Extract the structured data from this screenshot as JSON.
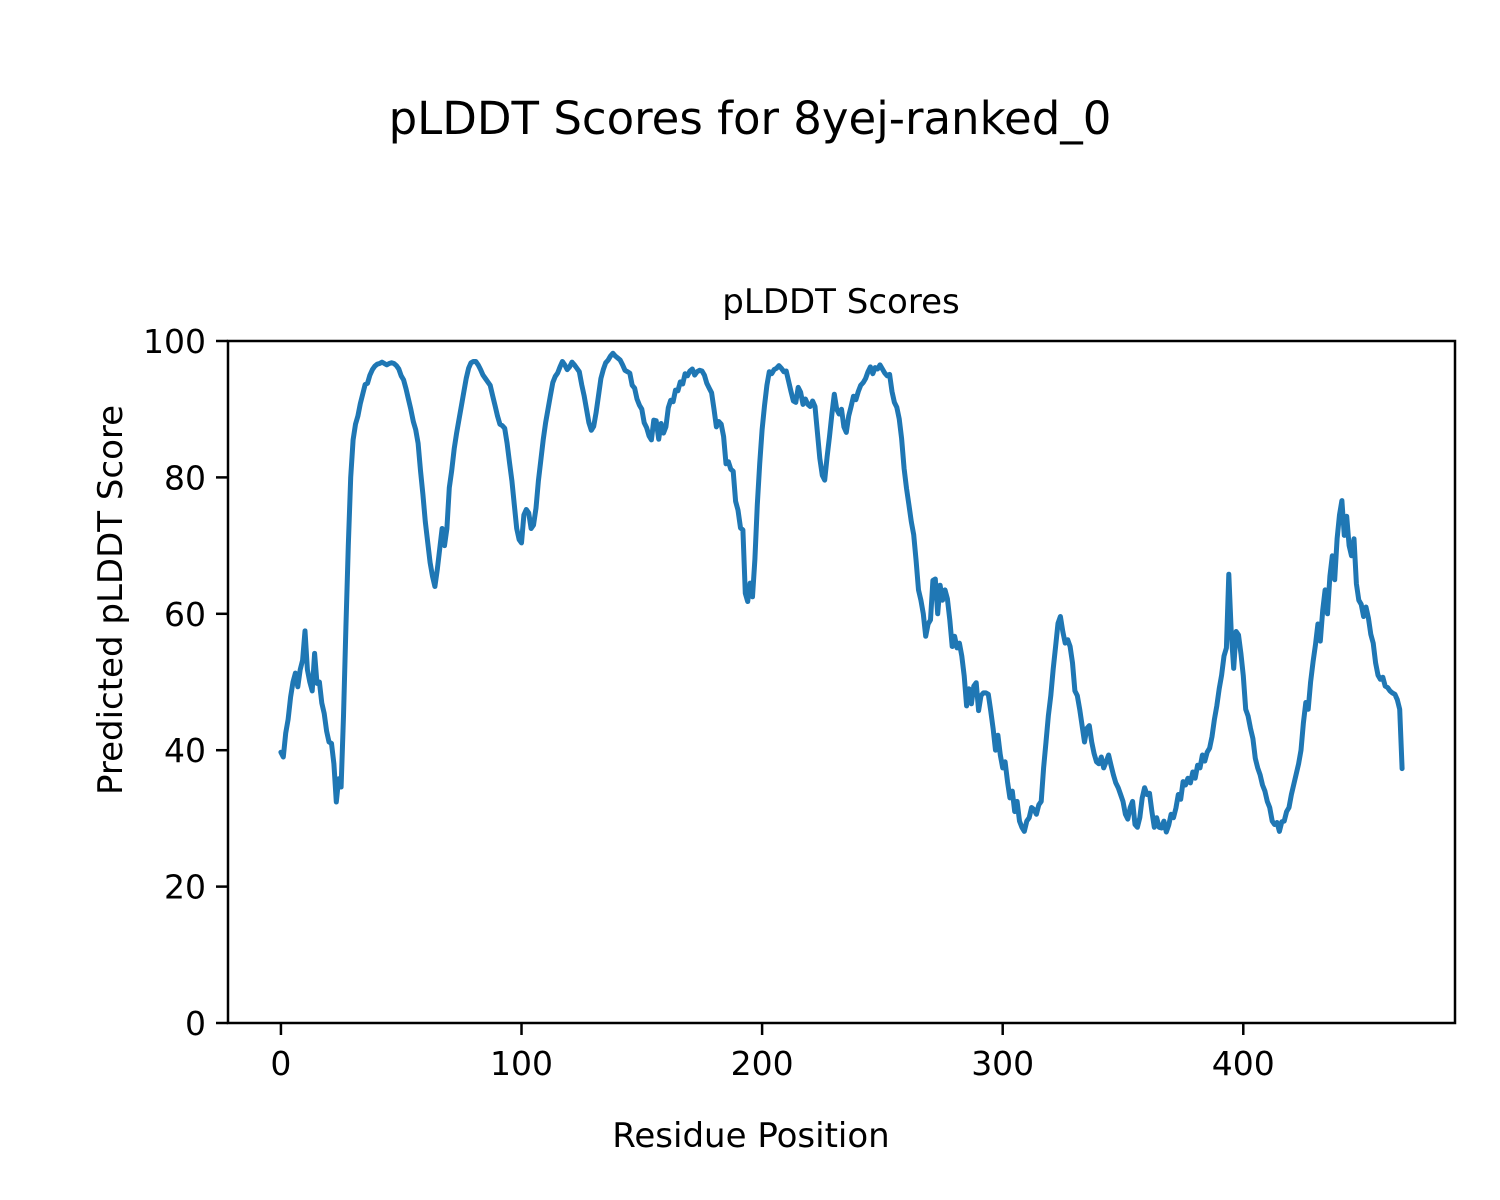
{
  "figure": {
    "title": "pLDDT Scores for 8yej-ranked_0",
    "axes_title": "pLDDT Scores",
    "xlabel": "Residue Position",
    "ylabel": "Predicted pLDDT Score"
  },
  "chart_data": {
    "type": "line",
    "title": "pLDDT Scores for 8yej-ranked_0",
    "subtitle": "pLDDT Scores",
    "xlabel": "Residue Position",
    "ylabel": "Predicted pLDDT Score",
    "xlim": [
      -22,
      488
    ],
    "ylim": [
      0,
      100
    ],
    "x_ticks": [
      0,
      100,
      200,
      300,
      400
    ],
    "y_ticks": [
      0,
      20,
      40,
      60,
      80,
      100
    ],
    "grid": false,
    "legend_position": "none",
    "line_color": "#1f77b4",
    "axis_color": "#000000",
    "x_start": 0,
    "x_step": 1,
    "values": [
      39.7,
      39.0,
      42.5,
      44.5,
      47.8,
      50.0,
      51.3,
      49.3,
      51.8,
      53.2,
      57.5,
      51.8,
      50.0,
      48.7,
      54.2,
      49.8,
      50.0,
      46.9,
      45.4,
      42.8,
      41.2,
      41.0,
      38.0,
      32.4,
      35.8,
      34.6,
      45.0,
      58.0,
      70.0,
      80.0,
      85.5,
      87.8,
      89.0,
      90.8,
      92.2,
      93.6,
      93.8,
      95.0,
      95.8,
      96.3,
      96.6,
      96.7,
      96.9,
      96.7,
      96.5,
      96.7,
      96.8,
      96.7,
      96.4,
      95.9,
      94.9,
      94.3,
      93.0,
      91.5,
      90.0,
      88.2,
      87.0,
      85.0,
      81.0,
      77.5,
      73.5,
      70.5,
      67.5,
      65.5,
      64.0,
      66.5,
      69.5,
      72.5,
      70.0,
      72.5,
      78.5,
      81.0,
      84.2,
      86.5,
      88.5,
      90.5,
      92.5,
      94.5,
      96.0,
      96.8,
      97.0,
      97.0,
      96.5,
      95.8,
      95.0,
      94.5,
      94.0,
      93.5,
      92.0,
      90.5,
      89.0,
      87.8,
      87.6,
      87.2,
      85.0,
      82.2,
      79.5,
      76.0,
      72.5,
      70.9,
      70.4,
      74.5,
      75.3,
      74.8,
      72.5,
      73.0,
      75.5,
      79.5,
      82.5,
      85.5,
      88.0,
      90.0,
      92.0,
      93.9,
      94.8,
      95.3,
      96.2,
      97.0,
      96.5,
      95.8,
      96.2,
      96.9,
      96.5,
      96.0,
      95.5,
      93.6,
      92.0,
      90.0,
      88.0,
      86.9,
      87.5,
      89.5,
      92.0,
      94.5,
      95.8,
      96.8,
      97.2,
      97.8,
      98.2,
      97.8,
      97.5,
      97.2,
      96.5,
      95.7,
      95.5,
      95.3,
      93.5,
      93.1,
      91.5,
      90.6,
      90.0,
      88.0,
      87.3,
      86.1,
      85.5,
      88.4,
      88.3,
      85.6,
      87.9,
      86.5,
      87.4,
      90.2,
      91.3,
      91.1,
      92.8,
      92.7,
      94.0,
      93.7,
      95.2,
      94.9,
      95.6,
      95.9,
      95.0,
      95.5,
      95.7,
      95.6,
      95.0,
      93.8,
      93.1,
      92.4,
      90.0,
      87.4,
      88.2,
      87.8,
      86.0,
      82.0,
      82.3,
      81.2,
      80.9,
      76.5,
      75.2,
      72.6,
      72.3,
      63.0,
      61.8,
      64.5,
      62.5,
      68.0,
      76.0,
      82.0,
      87.0,
      90.5,
      93.5,
      95.5,
      95.2,
      95.8,
      96.0,
      96.4,
      96.0,
      95.5,
      95.6,
      94.1,
      92.6,
      91.2,
      91.0,
      93.2,
      92.5,
      90.7,
      91.5,
      90.7,
      90.4,
      91.2,
      90.4,
      86.6,
      82.8,
      80.3,
      79.6,
      83.0,
      86.0,
      89.3,
      92.2,
      90.0,
      89.3,
      90.0,
      87.4,
      86.6,
      89.0,
      90.4,
      91.9,
      91.4,
      92.6,
      93.5,
      93.9,
      94.5,
      95.5,
      96.2,
      95.2,
      96.1,
      95.9,
      96.5,
      95.9,
      95.3,
      94.9,
      95.1,
      92.6,
      91.0,
      90.3,
      88.6,
      85.7,
      81.3,
      78.4,
      76.0,
      73.5,
      71.6,
      67.8,
      63.5,
      62.0,
      60.0,
      56.7,
      58.5,
      59.1,
      64.9,
      65.1,
      60.0,
      64.2,
      62.0,
      63.5,
      62.2,
      59.1,
      55.2,
      56.7,
      55.0,
      55.7,
      53.8,
      50.9,
      46.5,
      49.0,
      46.8,
      49.4,
      49.9,
      45.8,
      48.0,
      48.4,
      48.4,
      48.2,
      45.8,
      43.2,
      40.0,
      42.2,
      39.3,
      37.4,
      38.3,
      35.4,
      33.0,
      34.0,
      31.0,
      32.5,
      29.6,
      28.7,
      28.1,
      29.6,
      30.1,
      31.6,
      31.3,
      30.6,
      32.0,
      32.5,
      37.4,
      41.2,
      45.1,
      48.0,
      51.9,
      55.2,
      58.6,
      59.6,
      57.4,
      55.7,
      56.2,
      55.2,
      52.8,
      48.7,
      48.0,
      46.0,
      43.6,
      41.2,
      43.2,
      43.6,
      41.2,
      39.5,
      38.3,
      38.0,
      39.0,
      37.4,
      38.3,
      39.3,
      37.8,
      36.4,
      35.2,
      34.5,
      33.5,
      32.5,
      30.6,
      29.9,
      31.6,
      32.5,
      29.1,
      28.7,
      30.1,
      33.0,
      34.5,
      33.5,
      33.7,
      31.0,
      28.7,
      30.1,
      28.7,
      28.6,
      29.6,
      28.0,
      29.0,
      30.6,
      30.1,
      31.5,
      33.5,
      32.8,
      35.4,
      34.9,
      35.9,
      35.2,
      36.8,
      35.9,
      37.8,
      37.4,
      39.3,
      38.4,
      39.7,
      40.3,
      42.0,
      44.5,
      46.5,
      49.0,
      51.0,
      53.8,
      55.0,
      65.8,
      57.1,
      52.0,
      57.4,
      56.9,
      54.2,
      50.9,
      46.0,
      45.0,
      43.2,
      41.7,
      38.8,
      37.4,
      36.4,
      34.9,
      34.0,
      32.5,
      31.6,
      29.6,
      29.1,
      29.4,
      28.1,
      29.5,
      29.6,
      31.0,
      31.6,
      33.5,
      35.0,
      36.5,
      38.0,
      40.0,
      44.0,
      47.0,
      46.0,
      50.0,
      53.0,
      55.5,
      58.5,
      56.0,
      60.5,
      63.5,
      60.0,
      65.5,
      68.5,
      65.0,
      71.0,
      74.5,
      76.6,
      71.5,
      74.3,
      70.0,
      68.5,
      71.0,
      64.4,
      62.0,
      61.4,
      59.6,
      61.0,
      59.4,
      57.0,
      55.7,
      52.8,
      51.0,
      50.4,
      50.7,
      49.4,
      49.2,
      48.7,
      48.4,
      48.2,
      47.4,
      46.0,
      37.3
    ]
  }
}
